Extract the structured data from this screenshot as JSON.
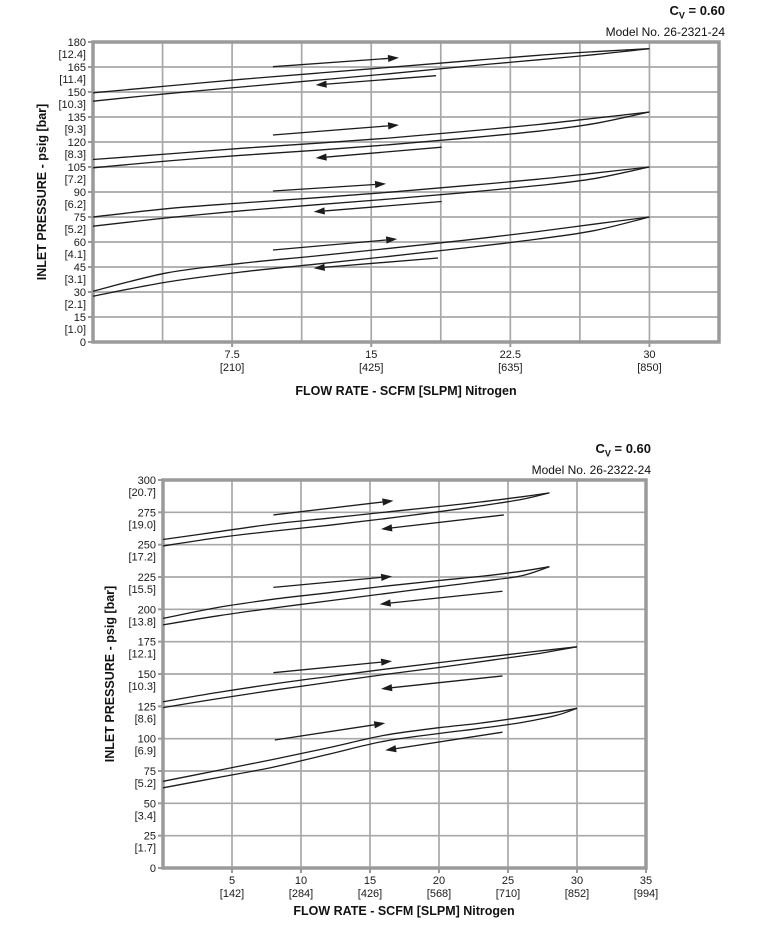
{
  "chart_data": [
    {
      "type": "line",
      "id": "flow-curve-26-2321-24",
      "header": {
        "cv": {
          "pre": "C",
          "sub": "V",
          "post": " = 0.60"
        },
        "model": "Model No. 26-2321-24"
      },
      "xlabel": "FLOW RATE - SCFM [SLPM] Nitrogen",
      "ylabel": "INLET PRESSURE - psig [bar]",
      "xlim": [
        0,
        33.75
      ],
      "x_grid_step": 3.75,
      "ylim": [
        0,
        180
      ],
      "y_grid_step": 15,
      "x_ticks": [
        {
          "v": 7.5,
          "scfm": "7.5",
          "slpm": "[210]"
        },
        {
          "v": 15,
          "scfm": "15",
          "slpm": "[425]"
        },
        {
          "v": 22.5,
          "scfm": "22.5",
          "slpm": "[635]"
        },
        {
          "v": 30,
          "scfm": "30",
          "slpm": "[850]"
        }
      ],
      "y_ticks": [
        {
          "v": 180,
          "psig": "180",
          "bar": "[12.4]"
        },
        {
          "v": 165,
          "psig": "165",
          "bar": "[11.4]"
        },
        {
          "v": 150,
          "psig": "150",
          "bar": "[10.3]"
        },
        {
          "v": 135,
          "psig": "135",
          "bar": "[9.3]"
        },
        {
          "v": 120,
          "psig": "120",
          "bar": "[8.3]"
        },
        {
          "v": 105,
          "psig": "105",
          "bar": "[7.2]"
        },
        {
          "v": 90,
          "psig": "90",
          "bar": "[6.2]"
        },
        {
          "v": 75,
          "psig": "75",
          "bar": "[5.2]"
        },
        {
          "v": 60,
          "psig": "60",
          "bar": "[4.1]"
        },
        {
          "v": 45,
          "psig": "45",
          "bar": "[3.1]"
        },
        {
          "v": 30,
          "psig": "30",
          "bar": "[2.1]"
        },
        {
          "v": 15,
          "psig": "15",
          "bar": "[1.0]"
        },
        {
          "v": 0,
          "psig": "0",
          "bar": ""
        }
      ],
      "series": [
        {
          "name": "loop-1",
          "increase": [
            [
              0,
              144.5
            ],
            [
              4,
              149
            ],
            [
              8,
              153
            ],
            [
              12,
              157
            ],
            [
              16,
              161
            ],
            [
              20,
              165.3
            ],
            [
              24,
              169.3
            ],
            [
              27,
              172.4
            ],
            [
              30,
              176
            ]
          ],
          "decrease": [
            [
              30,
              176
            ],
            [
              27,
              174.2
            ],
            [
              24,
              172
            ],
            [
              20,
              168.5
            ],
            [
              16,
              164.8
            ],
            [
              12,
              161.2
            ],
            [
              8,
              157.6
            ],
            [
              4,
              153.6
            ],
            [
              0,
              149.5
            ]
          ],
          "arrow_increase": {
            "tail": [
              9.7,
              165.2
            ],
            "head": [
              16.5,
              170.6
            ]
          },
          "arrow_decrease": {
            "tail": [
              18.5,
              159.8
            ],
            "head": [
              12.0,
              154.2
            ]
          }
        },
        {
          "name": "loop-2",
          "increase": [
            [
              0,
              104.5
            ],
            [
              4,
              108.6
            ],
            [
              8,
              112
            ],
            [
              12,
              115
            ],
            [
              16,
              118.4
            ],
            [
              20,
              122.2
            ],
            [
              24,
              126.5
            ],
            [
              27,
              131
            ],
            [
              30,
              138
            ]
          ],
          "decrease": [
            [
              30,
              138
            ],
            [
              27,
              134.2
            ],
            [
              24,
              130.5
            ],
            [
              20,
              126.3
            ],
            [
              16,
              122.4
            ],
            [
              12,
              119.2
            ],
            [
              8,
              116.2
            ],
            [
              4,
              112.8
            ],
            [
              0,
              109.5
            ]
          ],
          "arrow_increase": {
            "tail": [
              9.7,
              124.2
            ],
            "head": [
              16.5,
              130.2
            ]
          },
          "arrow_decrease": {
            "tail": [
              18.8,
              116.9
            ],
            "head": [
              12.0,
              110.4
            ]
          }
        },
        {
          "name": "loop-3",
          "increase": [
            [
              0,
              69.5
            ],
            [
              4,
              74.5
            ],
            [
              8,
              78.7
            ],
            [
              12,
              82.3
            ],
            [
              16,
              85.8
            ],
            [
              20,
              89.6
            ],
            [
              24,
              93.9
            ],
            [
              27,
              98
            ],
            [
              30,
              105
            ]
          ],
          "decrease": [
            [
              30,
              105
            ],
            [
              27,
              101.3
            ],
            [
              24,
              97.7
            ],
            [
              20,
              93.7
            ],
            [
              16,
              89.9
            ],
            [
              12,
              86.5
            ],
            [
              8,
              83.4
            ],
            [
              4,
              80
            ],
            [
              0,
              75
            ]
          ],
          "arrow_increase": {
            "tail": [
              9.7,
              90.6
            ],
            "head": [
              15.8,
              94.9
            ]
          },
          "arrow_decrease": {
            "tail": [
              18.8,
              84.3
            ],
            "head": [
              11.9,
              78.1
            ]
          }
        },
        {
          "name": "loop-4",
          "increase": [
            [
              0,
              27.5
            ],
            [
              4,
              36
            ],
            [
              8,
              42
            ],
            [
              12,
              46.7
            ],
            [
              16,
              51.4
            ],
            [
              20,
              56.4
            ],
            [
              24,
              61.8
            ],
            [
              27,
              66.8
            ],
            [
              30,
              75
            ]
          ],
          "decrease": [
            [
              30,
              75
            ],
            [
              27,
              70.7
            ],
            [
              24,
              66.3
            ],
            [
              20,
              61
            ],
            [
              16,
              56.2
            ],
            [
              12,
              51.6
            ],
            [
              8,
              47.2
            ],
            [
              4,
              41.5
            ],
            [
              0,
              30.5
            ]
          ],
          "arrow_increase": {
            "tail": [
              9.7,
              55.2
            ],
            "head": [
              16.4,
              61.8
            ]
          },
          "arrow_decrease": {
            "tail": [
              18.6,
              50.4
            ],
            "head": [
              11.9,
              44.3
            ]
          }
        }
      ],
      "colors": {
        "curve": "#1c1c1c",
        "grid": "#a8a8a8",
        "border": "#9a9a9a",
        "text": "#1a1a1a"
      }
    },
    {
      "type": "line",
      "id": "flow-curve-26-2322-24",
      "header": {
        "cv": {
          "pre": "C",
          "sub": "V",
          "post": " = 0.60"
        },
        "model": "Model No. 26-2322-24"
      },
      "xlabel": "FLOW RATE - SCFM [SLPM] Nitrogen",
      "ylabel": "INLET PRESSURE - psig [bar]",
      "xlim": [
        0,
        35
      ],
      "x_grid_step": 5,
      "ylim": [
        0,
        300
      ],
      "y_grid_step": 25,
      "x_ticks": [
        {
          "v": 5,
          "scfm": "5",
          "slpm": "[142]"
        },
        {
          "v": 10,
          "scfm": "10",
          "slpm": "[284]"
        },
        {
          "v": 15,
          "scfm": "15",
          "slpm": "[426]"
        },
        {
          "v": 20,
          "scfm": "20",
          "slpm": "[568]"
        },
        {
          "v": 25,
          "scfm": "25",
          "slpm": "[710]"
        },
        {
          "v": 30,
          "scfm": "30",
          "slpm": "[852]"
        },
        {
          "v": 35,
          "scfm": "35",
          "slpm": "[994]"
        }
      ],
      "y_ticks": [
        {
          "v": 300,
          "psig": "300",
          "bar": "[20.7]"
        },
        {
          "v": 275,
          "psig": "275",
          "bar": "[19.0]"
        },
        {
          "v": 250,
          "psig": "250",
          "bar": "[17.2]"
        },
        {
          "v": 225,
          "psig": "225",
          "bar": "[15.5]"
        },
        {
          "v": 200,
          "psig": "200",
          "bar": "[13.8]"
        },
        {
          "v": 175,
          "psig": "175",
          "bar": "[12.1]"
        },
        {
          "v": 150,
          "psig": "150",
          "bar": "[10.3]"
        },
        {
          "v": 125,
          "psig": "125",
          "bar": "[8.6]"
        },
        {
          "v": 100,
          "psig": "100",
          "bar": "[6.9]"
        },
        {
          "v": 75,
          "psig": "75",
          "bar": "[5.2]"
        },
        {
          "v": 50,
          "psig": "50",
          "bar": "[3.4]"
        },
        {
          "v": 25,
          "psig": "25",
          "bar": "[1.7]"
        },
        {
          "v": 0,
          "psig": "0",
          "bar": ""
        }
      ],
      "series": [
        {
          "name": "loop-1",
          "increase": [
            [
              0,
              249
            ],
            [
              4,
              255.5
            ],
            [
              8,
              260.5
            ],
            [
              12,
              265
            ],
            [
              16,
              270
            ],
            [
              20,
              275.5
            ],
            [
              23,
              280
            ],
            [
              26,
              285
            ],
            [
              28,
              290
            ]
          ],
          "decrease": [
            [
              28,
              290
            ],
            [
              26,
              287
            ],
            [
              23,
              283
            ],
            [
              20,
              279.5
            ],
            [
              16,
              275
            ],
            [
              12,
              270.5
            ],
            [
              8,
              266
            ],
            [
              4,
              260
            ],
            [
              0,
              254
            ]
          ],
          "arrow_increase": {
            "tail": [
              8.0,
              273
            ],
            "head": [
              16.7,
              284
            ]
          },
          "arrow_decrease": {
            "tail": [
              24.7,
              273
            ],
            "head": [
              15.8,
              262
            ]
          }
        },
        {
          "name": "loop-2",
          "increase": [
            [
              0,
              188
            ],
            [
              4,
              195
            ],
            [
              8,
              201
            ],
            [
              12,
              206.5
            ],
            [
              16,
              212
            ],
            [
              20,
              217.5
            ],
            [
              23,
              221.5
            ],
            [
              26,
              226
            ],
            [
              28,
              233
            ]
          ],
          "decrease": [
            [
              28,
              233
            ],
            [
              26,
              229.5
            ],
            [
              23,
              225.5
            ],
            [
              20,
              222.3
            ],
            [
              16,
              217.8
            ],
            [
              12,
              212.8
            ],
            [
              8,
              207.8
            ],
            [
              4,
              201.5
            ],
            [
              0,
              193
            ]
          ],
          "arrow_increase": {
            "tail": [
              8.0,
              217
            ],
            "head": [
              16.6,
              225.5
            ]
          },
          "arrow_decrease": {
            "tail": [
              24.6,
              214
            ],
            "head": [
              15.7,
              204
            ]
          }
        },
        {
          "name": "loop-3",
          "increase": [
            [
              0,
              124
            ],
            [
              4,
              131
            ],
            [
              8,
              137.5
            ],
            [
              12,
              143.5
            ],
            [
              16,
              149.5
            ],
            [
              20,
              155
            ],
            [
              24,
              161
            ],
            [
              27,
              165.5
            ],
            [
              30,
              171
            ]
          ],
          "decrease": [
            [
              30,
              171
            ],
            [
              27,
              167.5
            ],
            [
              24,
              163.8
            ],
            [
              20,
              158.8
            ],
            [
              16,
              153.6
            ],
            [
              12,
              148
            ],
            [
              8,
              142.3
            ],
            [
              4,
              135.8
            ],
            [
              0,
              128.5
            ]
          ],
          "arrow_increase": {
            "tail": [
              8.0,
              151
            ],
            "head": [
              16.6,
              160
            ]
          },
          "arrow_decrease": {
            "tail": [
              24.6,
              148.5
            ],
            "head": [
              15.8,
              138.5
            ]
          }
        },
        {
          "name": "loop-4",
          "increase": [
            [
              0,
              62
            ],
            [
              4,
              70
            ],
            [
              8,
              78
            ],
            [
              12,
              88
            ],
            [
              16,
              98
            ],
            [
              20,
              104
            ],
            [
              23,
              108
            ],
            [
              26,
              112.5
            ],
            [
              28.5,
              118
            ],
            [
              30,
              123.5
            ]
          ],
          "decrease": [
            [
              30,
              123.5
            ],
            [
              28.5,
              120.5
            ],
            [
              26,
              116.5
            ],
            [
              23,
              112
            ],
            [
              20,
              108.5
            ],
            [
              16,
              102.5
            ],
            [
              12,
              93
            ],
            [
              8,
              84
            ],
            [
              4,
              75.5
            ],
            [
              0,
              67
            ]
          ],
          "arrow_increase": {
            "tail": [
              8.1,
              99
            ],
            "head": [
              16.1,
              112
            ]
          },
          "arrow_decrease": {
            "tail": [
              24.6,
              105
            ],
            "head": [
              16.1,
              91
            ]
          }
        }
      ],
      "colors": {
        "curve": "#1c1c1c",
        "grid": "#a8a8a8",
        "border": "#9a9a9a",
        "text": "#1a1a1a"
      }
    }
  ]
}
